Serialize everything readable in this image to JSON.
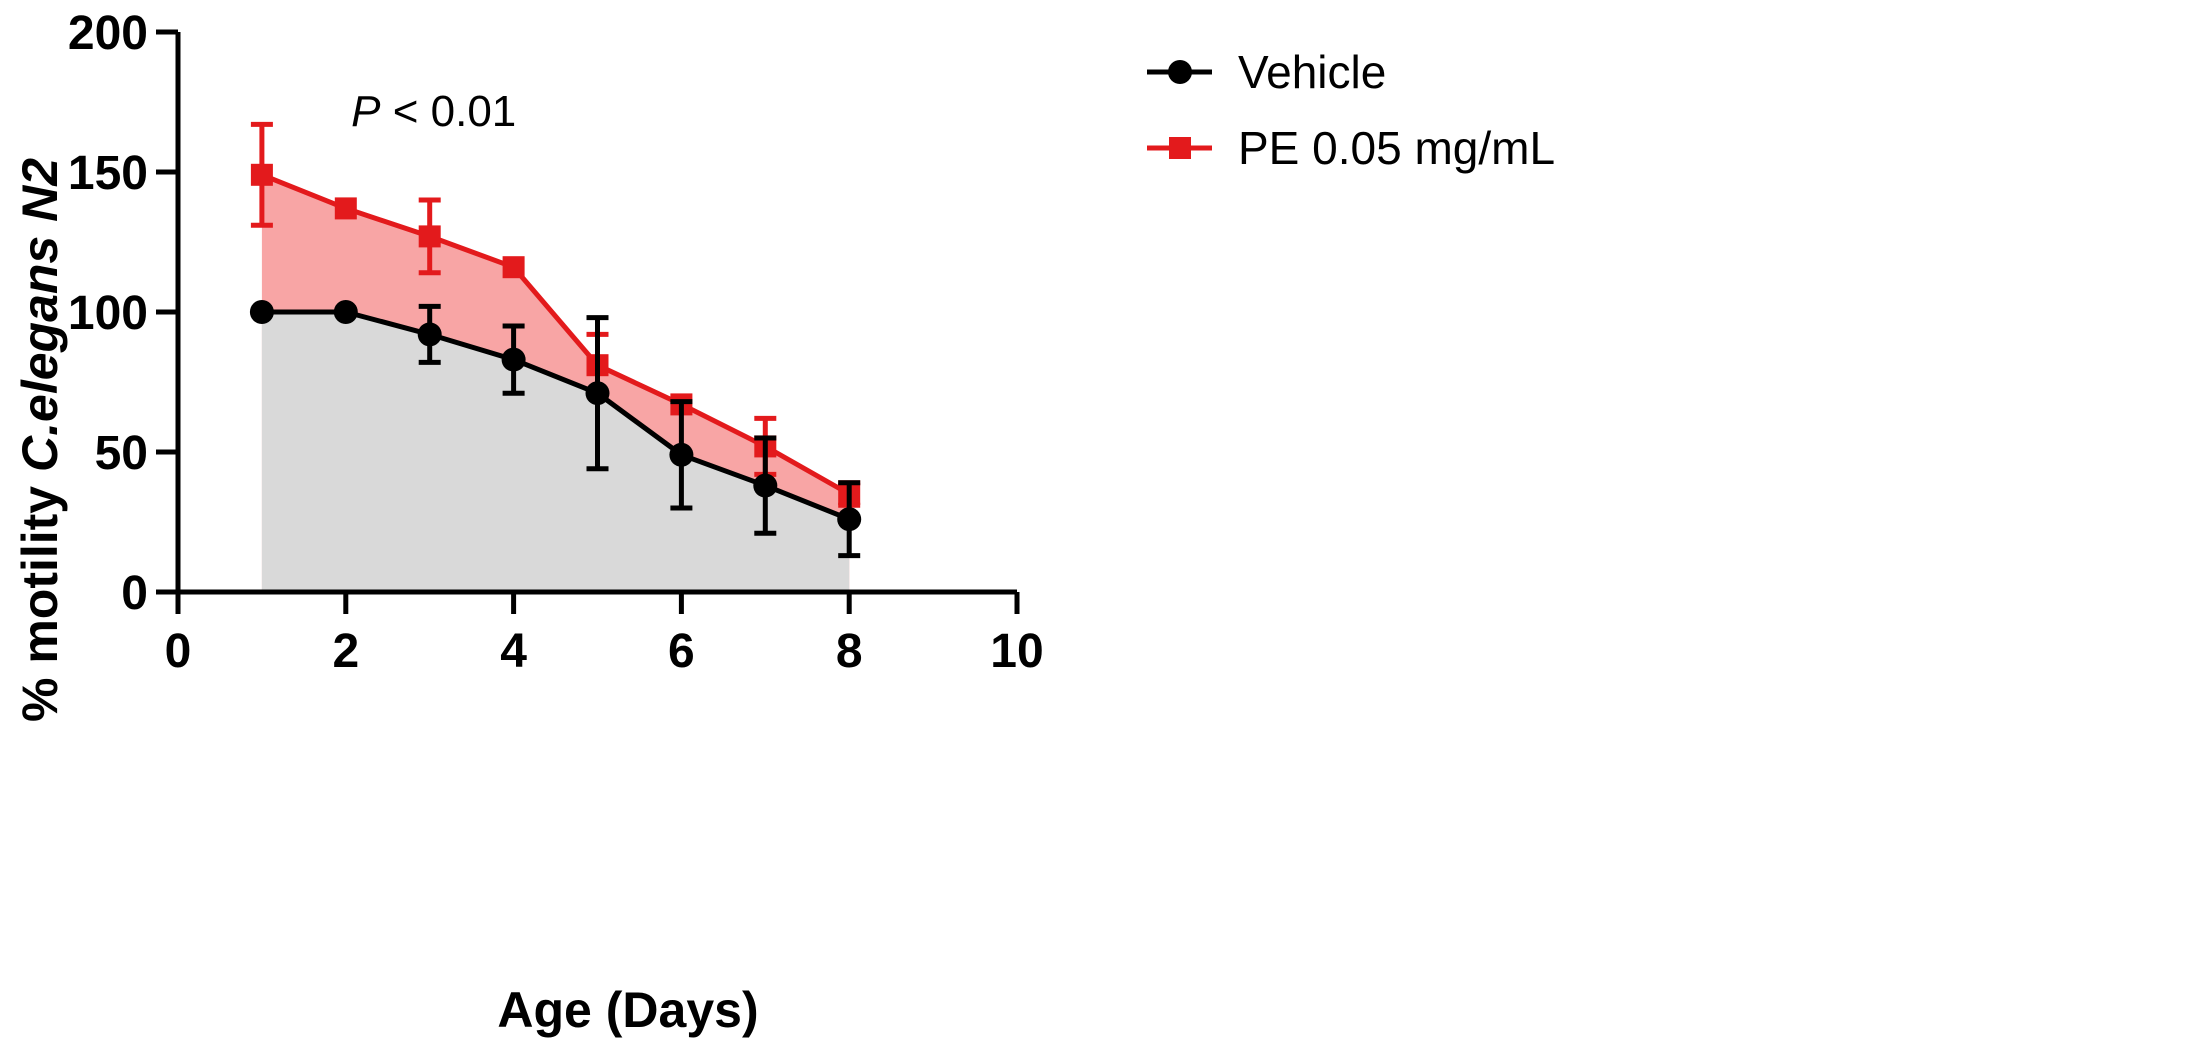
{
  "chart_data": {
    "type": "line",
    "title": "",
    "xlabel": "Age (Days)",
    "ylabel_prefix": "% motility ",
    "ylabel_italic": "C.elegans N2",
    "xlim": [
      0,
      10
    ],
    "ylim": [
      0,
      200
    ],
    "xticks": [
      0,
      2,
      4,
      6,
      8,
      10
    ],
    "yticks": [
      0,
      50,
      100,
      150,
      200
    ],
    "grid": false,
    "legend_position": "top-right",
    "annotation": {
      "italic": "P",
      "text": " < 0.01",
      "x": 2.6,
      "y": 170
    },
    "series": [
      {
        "name": "PE 0.05 mg/mL",
        "color": "#e31a1c",
        "fill": "#f8a5a5",
        "marker": "square",
        "x": [
          1,
          2,
          3,
          4,
          5,
          6,
          7,
          8
        ],
        "values": [
          149,
          137,
          127,
          116,
          81,
          67,
          52,
          35
        ],
        "errors": [
          18,
          0,
          13,
          0,
          11,
          0,
          10,
          4
        ]
      },
      {
        "name": "Vehicle",
        "color": "#000000",
        "fill": "#d9d9d9",
        "marker": "circle",
        "x": [
          1,
          2,
          3,
          4,
          5,
          6,
          7,
          8
        ],
        "values": [
          100,
          100,
          92,
          83,
          71,
          49,
          38,
          26
        ],
        "errors": [
          0,
          0,
          10,
          12,
          27,
          19,
          17,
          13
        ]
      }
    ]
  }
}
